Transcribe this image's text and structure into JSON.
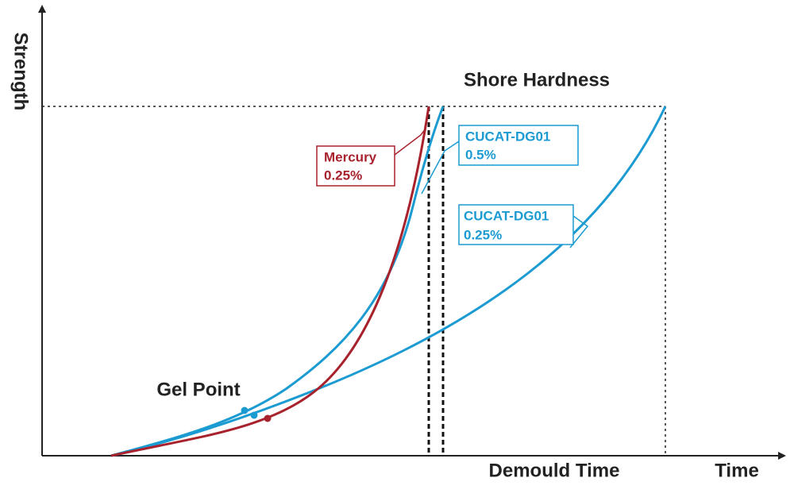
{
  "axes": {
    "y_label": "Strength",
    "x_label": "Time"
  },
  "annotations": {
    "shore_hardness": "Shore Hardness",
    "gel_point": "Gel Point",
    "demould_time": "Demould Time"
  },
  "curves": [
    {
      "label_lines": [
        "Mercury",
        "0.25%"
      ]
    },
    {
      "label_lines": [
        "CUCAT-DG01",
        "0.5%"
      ]
    },
    {
      "label_lines": [
        "CUCAT-DG01",
        "0.25%"
      ]
    }
  ]
}
